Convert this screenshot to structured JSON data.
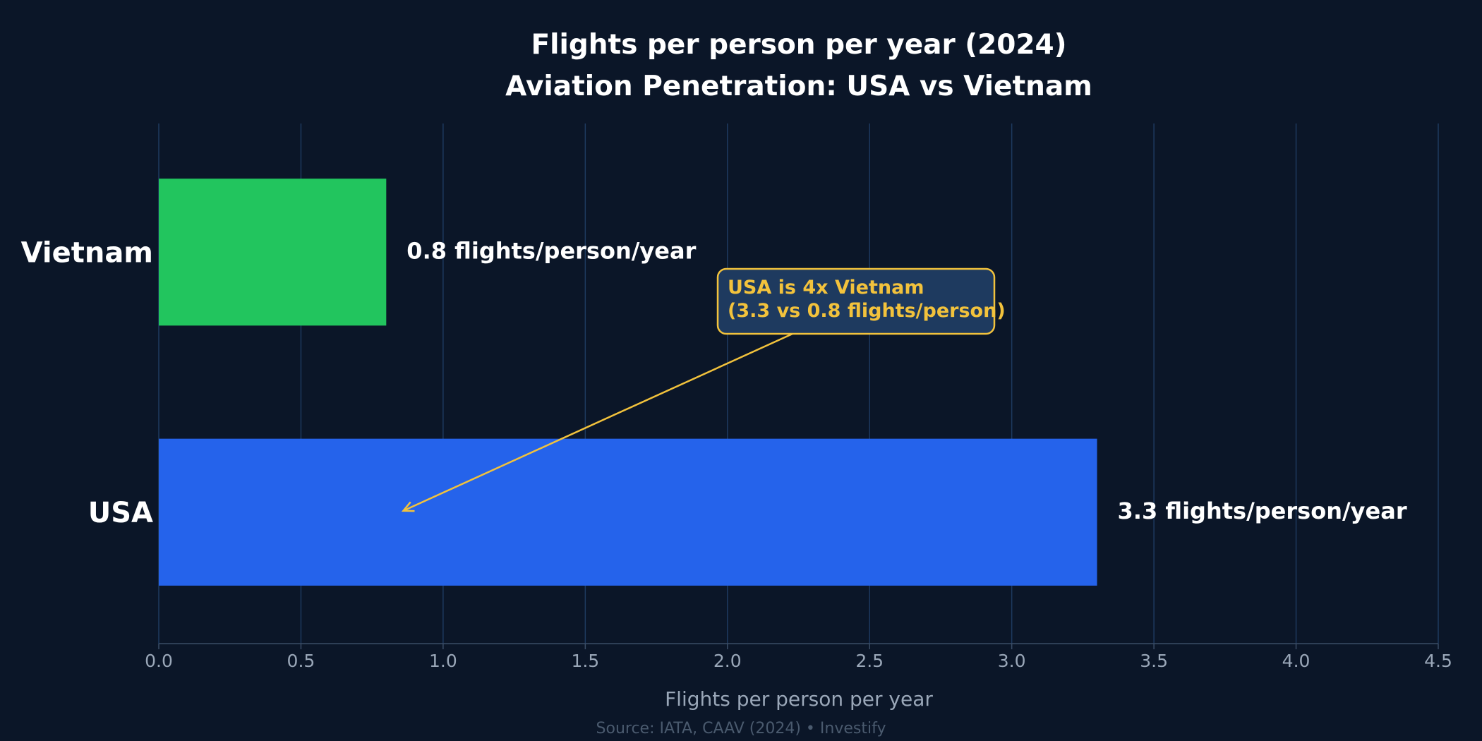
{
  "chart_data": {
    "type": "bar",
    "orientation": "horizontal",
    "title": "Flights per person per year (2024)",
    "subtitle": "Aviation Penetration: USA vs Vietnam",
    "xlabel": "Flights per person per year",
    "ylabel": "",
    "xlim": [
      0,
      4.5
    ],
    "x_ticks": [
      "0.0",
      "0.5",
      "1.0",
      "1.5",
      "2.0",
      "2.5",
      "3.0",
      "3.5",
      "4.0",
      "4.5"
    ],
    "grid": true,
    "categories": [
      "Vietnam",
      "USA"
    ],
    "values": [
      0.8,
      3.3
    ],
    "value_labels": [
      "0.8 flights/person/year",
      "3.3 flights/person/year"
    ],
    "bar_colors": [
      "#22c55e",
      "#2563eb"
    ],
    "annotation": {
      "lines": [
        "USA is 4x Vietnam",
        "(3.3 vs 0.8 flights/person)"
      ],
      "color": "#f2c23c",
      "points_to_category": "USA"
    },
    "source": "Source: IATA, CAAV (2024) • Investify"
  },
  "colors": {
    "background": "#0b1628",
    "grid": "#1e3a5f",
    "annotation_box": "#1e3a5f"
  }
}
